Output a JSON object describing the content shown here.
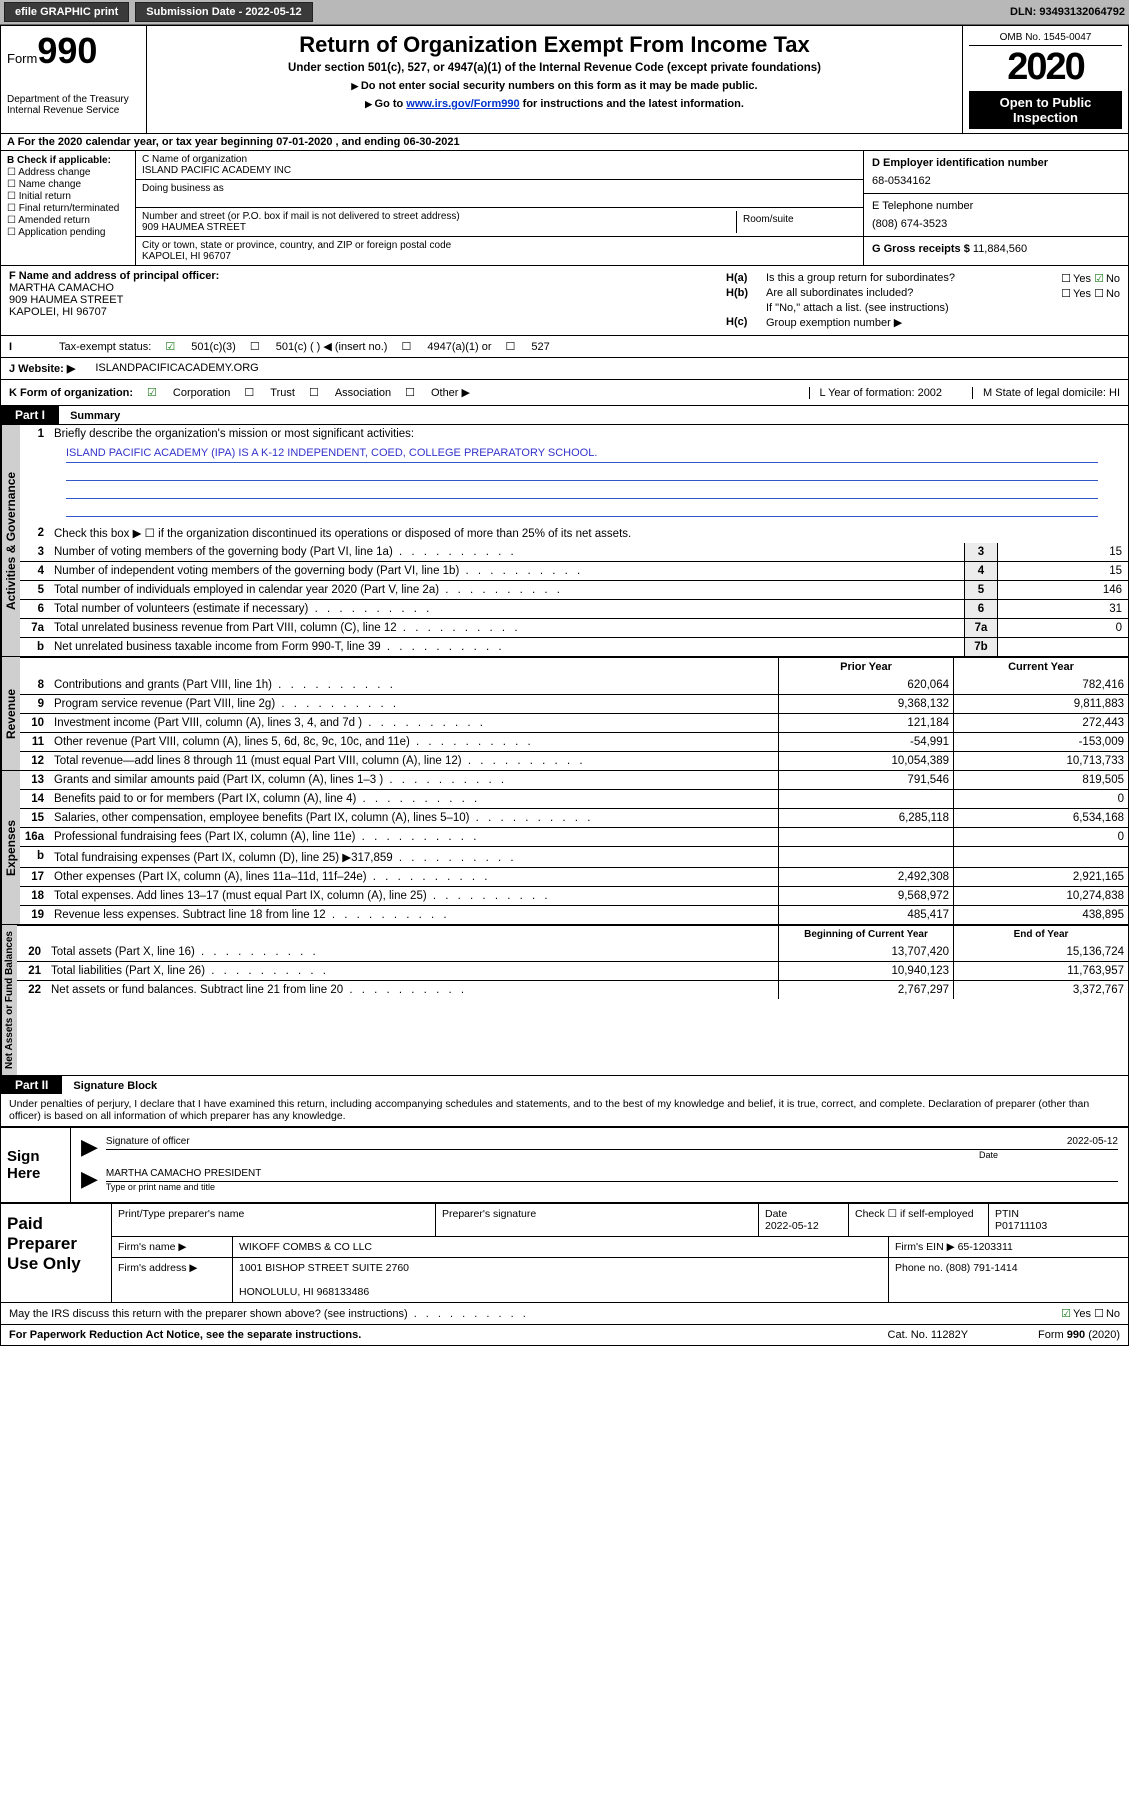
{
  "topbar": {
    "efile": "efile GRAPHIC print",
    "subdate_label": "Submission Date - 2022-05-12",
    "dln": "DLN: 93493132064792"
  },
  "header": {
    "form_label": "Form",
    "form_num": "990",
    "dept": "Department of the Treasury\nInternal Revenue Service",
    "title": "Return of Organization Exempt From Income Tax",
    "sub1": "Under section 501(c), 527, or 4947(a)(1) of the Internal Revenue Code (except private foundations)",
    "sub2": "Do not enter social security numbers on this form as it may be made public.",
    "sub3_pre": "Go to ",
    "sub3_link": "www.irs.gov/Form990",
    "sub3_post": " for instructions and the latest information.",
    "omb": "OMB No. 1545-0047",
    "year": "2020",
    "openpub": "Open to Public Inspection"
  },
  "row_a": "A For the 2020 calendar year, or tax year beginning 07-01-2020    , and ending 06-30-2021",
  "col_b": {
    "hdr": "B Check if applicable:",
    "opts": [
      "Address change",
      "Name change",
      "Initial return",
      "Final return/terminated",
      "Amended return",
      "Application pending"
    ]
  },
  "col_c": {
    "name_lbl": "C Name of organization",
    "name": "ISLAND PACIFIC ACADEMY INC",
    "dba_lbl": "Doing business as",
    "addr_lbl": "Number and street (or P.O. box if mail is not delivered to street address)",
    "room_lbl": "Room/suite",
    "addr": "909 HAUMEA STREET",
    "city_lbl": "City or town, state or province, country, and ZIP or foreign postal code",
    "city": "KAPOLEI, HI  96707"
  },
  "col_d": {
    "ein_lbl": "D Employer identification number",
    "ein": "68-0534162",
    "tel_lbl": "E Telephone number",
    "tel": "(808) 674-3523",
    "gross_lbl": "G Gross receipts $",
    "gross": "11,884,560"
  },
  "f": {
    "lbl": "F  Name and address of principal officer:",
    "name": "MARTHA CAMACHO",
    "addr1": "909 HAUMEA STREET",
    "addr2": "KAPOLEI, HI  96707"
  },
  "h": {
    "a_lbl": "Is this a group return for subordinates?",
    "b_lbl": "Are all subordinates included?",
    "b_note": "If \"No,\" attach a list. (see instructions)",
    "c_lbl": "Group exemption number ▶"
  },
  "tax": {
    "lbl": "Tax-exempt status:",
    "o1": "501(c)(3)",
    "o2": "501(c) (   ) ◀ (insert no.)",
    "o3": "4947(a)(1) or",
    "o4": "527"
  },
  "web": {
    "lbl": "J   Website: ▶",
    "val": "ISLANDPACIFICACADEMY.ORG"
  },
  "row_k": {
    "lbl": "K Form of organization:",
    "o1": "Corporation",
    "o2": "Trust",
    "o3": "Association",
    "o4": "Other ▶",
    "l": "L Year of formation: 2002",
    "m": "M State of legal domicile: HI"
  },
  "part1": {
    "hdr": "Part I",
    "title": "Summary"
  },
  "summary": {
    "q1_lbl": "Briefly describe the organization's mission or most significant activities:",
    "q1_val": "ISLAND PACIFIC ACADEMY (IPA) IS A K-12 INDEPENDENT, COED, COLLEGE PREPARATORY SCHOOL.",
    "q2": "Check this box ▶ ☐  if the organization discontinued its operations or disposed of more than 25% of its net assets.",
    "lines": [
      {
        "n": "3",
        "t": "Number of voting members of the governing body (Part VI, line 1a)",
        "b": "3",
        "v": "15"
      },
      {
        "n": "4",
        "t": "Number of independent voting members of the governing body (Part VI, line 1b)",
        "b": "4",
        "v": "15"
      },
      {
        "n": "5",
        "t": "Total number of individuals employed in calendar year 2020 (Part V, line 2a)",
        "b": "5",
        "v": "146"
      },
      {
        "n": "6",
        "t": "Total number of volunteers (estimate if necessary)",
        "b": "6",
        "v": "31"
      },
      {
        "n": "7a",
        "t": "Total unrelated business revenue from Part VIII, column (C), line 12",
        "b": "7a",
        "v": "0"
      },
      {
        "n": "b",
        "t": "Net unrelated business taxable income from Form 990-T, line 39",
        "b": "7b",
        "v": ""
      }
    ]
  },
  "rev_hdr": {
    "c3": "Prior Year",
    "c4": "Current Year"
  },
  "revenue": [
    {
      "n": "8",
      "t": "Contributions and grants (Part VIII, line 1h)",
      "p": "620,064",
      "c": "782,416"
    },
    {
      "n": "9",
      "t": "Program service revenue (Part VIII, line 2g)",
      "p": "9,368,132",
      "c": "9,811,883"
    },
    {
      "n": "10",
      "t": "Investment income (Part VIII, column (A), lines 3, 4, and 7d )",
      "p": "121,184",
      "c": "272,443"
    },
    {
      "n": "11",
      "t": "Other revenue (Part VIII, column (A), lines 5, 6d, 8c, 9c, 10c, and 11e)",
      "p": "-54,991",
      "c": "-153,009"
    },
    {
      "n": "12",
      "t": "Total revenue—add lines 8 through 11 (must equal Part VIII, column (A), line 12)",
      "p": "10,054,389",
      "c": "10,713,733"
    }
  ],
  "expenses": [
    {
      "n": "13",
      "t": "Grants and similar amounts paid (Part IX, column (A), lines 1–3 )",
      "p": "791,546",
      "c": "819,505"
    },
    {
      "n": "14",
      "t": "Benefits paid to or for members (Part IX, column (A), line 4)",
      "p": "",
      "c": "0"
    },
    {
      "n": "15",
      "t": "Salaries, other compensation, employee benefits (Part IX, column (A), lines 5–10)",
      "p": "6,285,118",
      "c": "6,534,168"
    },
    {
      "n": "16a",
      "t": "Professional fundraising fees (Part IX, column (A), line 11e)",
      "p": "",
      "c": "0"
    },
    {
      "n": "b",
      "t": "Total fundraising expenses (Part IX, column (D), line 25) ▶317,859",
      "p": "",
      "c": ""
    },
    {
      "n": "17",
      "t": "Other expenses (Part IX, column (A), lines 11a–11d, 11f–24e)",
      "p": "2,492,308",
      "c": "2,921,165"
    },
    {
      "n": "18",
      "t": "Total expenses. Add lines 13–17 (must equal Part IX, column (A), line 25)",
      "p": "9,568,972",
      "c": "10,274,838"
    },
    {
      "n": "19",
      "t": "Revenue less expenses. Subtract line 18 from line 12",
      "p": "485,417",
      "c": "438,895"
    }
  ],
  "na_hdr": {
    "c3": "Beginning of Current Year",
    "c4": "End of Year"
  },
  "netassets": [
    {
      "n": "20",
      "t": "Total assets (Part X, line 16)",
      "p": "13,707,420",
      "c": "15,136,724"
    },
    {
      "n": "21",
      "t": "Total liabilities (Part X, line 26)",
      "p": "10,940,123",
      "c": "11,763,957"
    },
    {
      "n": "22",
      "t": "Net assets or fund balances. Subtract line 21 from line 20",
      "p": "2,767,297",
      "c": "3,372,767"
    }
  ],
  "part2": {
    "hdr": "Part II",
    "title": "Signature Block"
  },
  "sig": {
    "decl": "Under penalties of perjury, I declare that I have examined this return, including accompanying schedules and statements, and to the best of my knowledge and belief, it is true, correct, and complete. Declaration of preparer (other than officer) is based on all information of which preparer has any knowledge.",
    "here": "Sign Here",
    "off_lbl": "Signature of officer",
    "date_lbl": "Date",
    "date": "2022-05-12",
    "name": "MARTHA CAMACHO  PRESIDENT",
    "name_lbl": "Type or print name and title"
  },
  "prep": {
    "hdr": "Paid Preparer Use Only",
    "r1": {
      "a": "Print/Type preparer's name",
      "b": "Preparer's signature",
      "c": "Date",
      "c2": "2022-05-12",
      "d": "Check ☐  if self-employed",
      "e": "PTIN",
      "e2": "P01711103"
    },
    "r2": {
      "a": "Firm's name      ▶",
      "b": "WIKOFF COMBS & CO LLC",
      "c": "Firm's EIN ▶ 65-1203311"
    },
    "r3": {
      "a": "Firm's address ▶",
      "b": "1001 BISHOP STREET SUITE 2760",
      "b2": "HONOLULU, HI  968133486",
      "c": "Phone no. (808) 791-1414"
    }
  },
  "footer": {
    "irs_q": "May the IRS discuss this return with the preparer shown above? (see instructions)",
    "pra": "For Paperwork Reduction Act Notice, see the separate instructions.",
    "cat": "Cat. No. 11282Y",
    "form": "Form 990 (2020)"
  },
  "vtabs": {
    "gov": "Activities & Governance",
    "rev": "Revenue",
    "exp": "Expenses",
    "na": "Net Assets or Fund Balances"
  }
}
